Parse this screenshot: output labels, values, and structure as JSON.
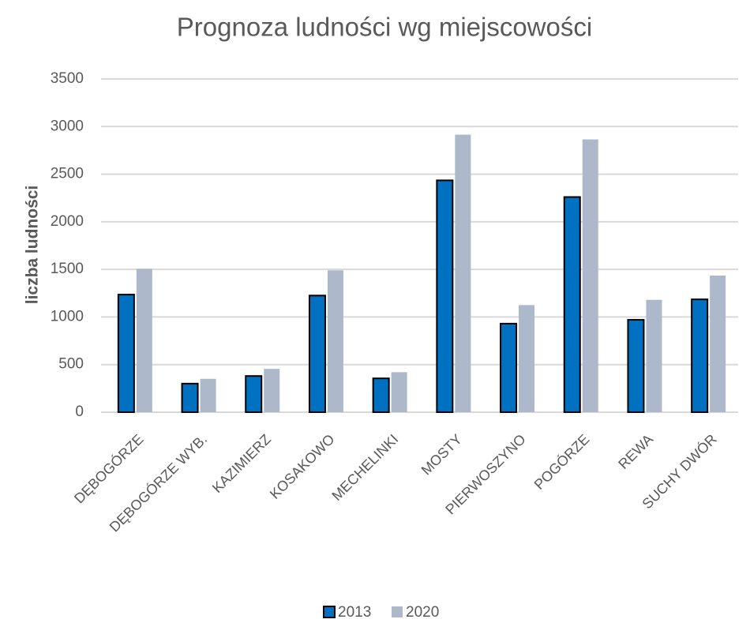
{
  "chart_data": {
    "type": "bar",
    "title": "Prognoza ludności wg miejscowości",
    "y_label": "liczba ludności",
    "categories": [
      "DĘBOGÓRZE",
      "DĘBOGÓRZE WYB.",
      "KAZIMIERZ",
      "KOSAKOWO",
      "MECHELINKI",
      "MOSTY",
      "PIERWOSZYNO",
      "POGÓRZE",
      "REWA",
      "SUCHY DWÓR"
    ],
    "series": [
      {
        "name": "2013",
        "color": "#0070c0",
        "values": [
          1235,
          300,
          380,
          1225,
          355,
          2435,
          930,
          2260,
          970,
          1185
        ]
      },
      {
        "name": "2020",
        "color": "#adb9ca",
        "values": [
          1505,
          350,
          455,
          1490,
          420,
          2915,
          1125,
          2865,
          1180,
          1435
        ]
      }
    ],
    "ylim": [
      0,
      3500
    ],
    "yticks": [
      0,
      500,
      1000,
      1500,
      2000,
      2500,
      3000,
      3500
    ],
    "grid": true,
    "legend": "bottom"
  }
}
